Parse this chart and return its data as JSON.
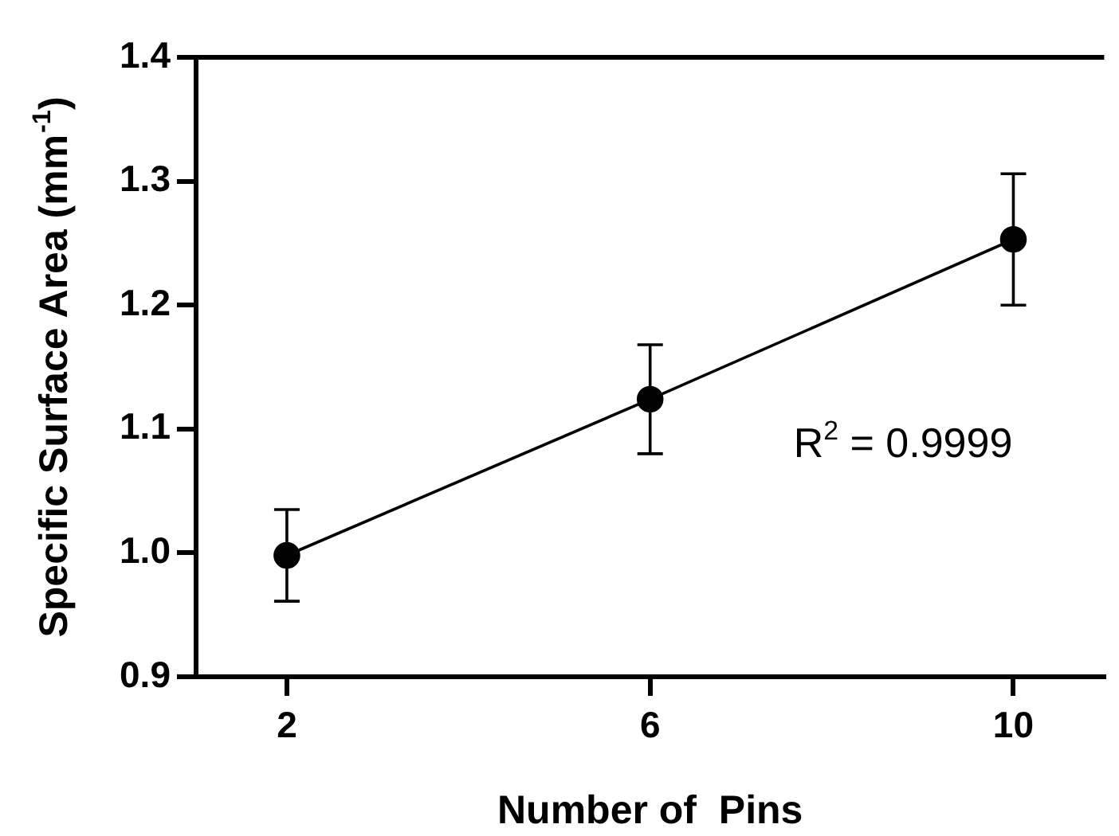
{
  "chart_data": {
    "type": "line",
    "xlabel": "Number of  Pins",
    "ylabel": "Specific Surface Area (mm$^{-1}$)",
    "x": [
      2,
      6,
      10
    ],
    "series": [
      {
        "color": "#000000",
        "values": [
          0.998,
          1.124,
          1.253
        ],
        "errors": [
          0.037,
          0.044,
          0.053
        ]
      }
    ],
    "xlim": [
      1,
      11
    ],
    "xticks": [
      2,
      6,
      10
    ],
    "ylim": [
      0.9,
      1.4
    ],
    "yticks": [
      0.9,
      {
        "value": 1,
        "label": "1.0"
      },
      1.1,
      1.2,
      1.3,
      1.4
    ],
    "marker": "circle",
    "line_style": "solid",
    "grid": false,
    "legend": false,
    "annotations": [
      "R$^{2}$ = 0.9999"
    ]
  }
}
